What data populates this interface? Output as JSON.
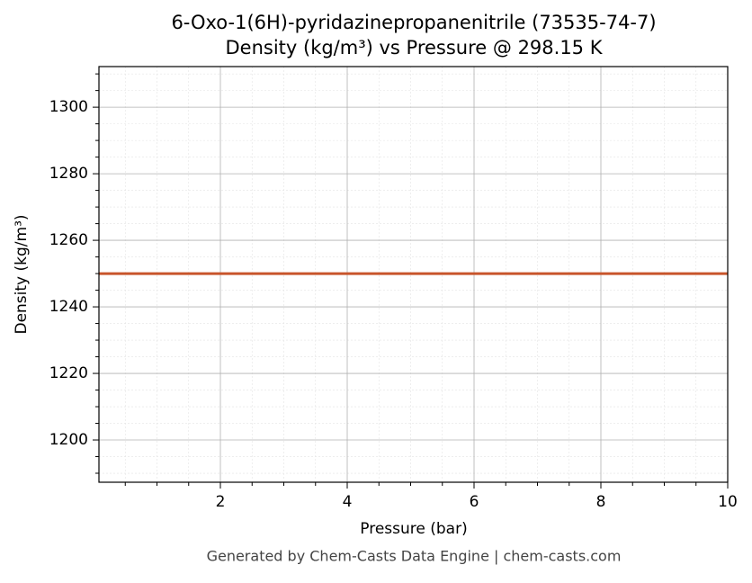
{
  "chart_data": {
    "type": "line",
    "title": "6-Oxo-1(6H)-pyridazinepropanenitrile (73535-74-7)",
    "subtitle": "Density (kg/m³) vs Pressure @ 298.15 K",
    "x_label": "Pressure (bar)",
    "y_label": "Density (kg/m³)",
    "footer": "Generated by Chem-Casts Data Engine | chem-casts.com",
    "x": [
      0.085,
      10
    ],
    "series": [
      {
        "name": "Density",
        "color": "#c8552b",
        "values": [
          1250,
          1250
        ]
      }
    ],
    "xlim": [
      0.085,
      10
    ],
    "xticks": [
      2,
      4,
      6,
      8,
      10
    ],
    "xminorticks": [
      0.5,
      1,
      1.5,
      2.5,
      3,
      3.5,
      4.5,
      5,
      5.5,
      6.5,
      7,
      7.5,
      8.5,
      9,
      9.5
    ],
    "ylim": [
      1187.3,
      1312.2
    ],
    "yticks": [
      1200,
      1220,
      1240,
      1260,
      1280,
      1300
    ],
    "yminorticks": [
      1190,
      1195,
      1205,
      1210,
      1215,
      1225,
      1230,
      1235,
      1245,
      1250,
      1255,
      1265,
      1270,
      1275,
      1285,
      1290,
      1295,
      1305,
      1310
    ],
    "grid": true
  }
}
